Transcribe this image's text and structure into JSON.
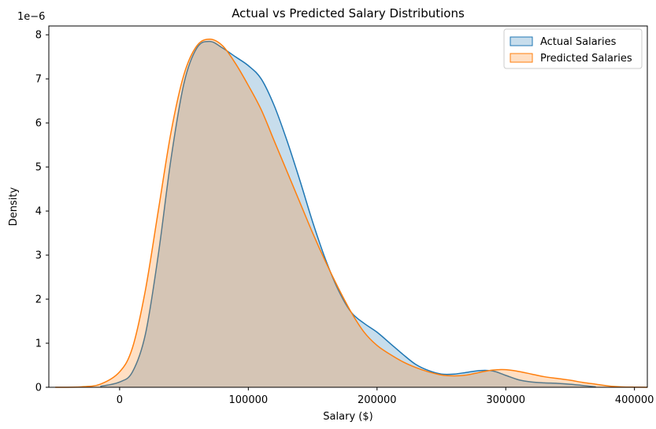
{
  "chart_data": {
    "type": "area",
    "title": "Actual vs Predicted Salary Distributions",
    "xlabel": "Salary ($)",
    "ylabel": "Density",
    "y_offset_label": "1e−6",
    "xlim": [
      -55000,
      410000
    ],
    "ylim": [
      0,
      8.2
    ],
    "x_ticks": [
      0,
      100000,
      200000,
      300000,
      400000
    ],
    "x_tick_labels": [
      "0",
      "100000",
      "200000",
      "300000",
      "400000"
    ],
    "y_ticks": [
      0,
      1,
      2,
      3,
      4,
      5,
      6,
      7,
      8
    ],
    "y_tick_labels": [
      "0",
      "1",
      "2",
      "3",
      "4",
      "5",
      "6",
      "7",
      "8"
    ],
    "grid": false,
    "legend_position": "top-right",
    "series": [
      {
        "name": "Actual Salaries",
        "color": "#1f77b4",
        "x": [
          -15000,
          0,
          10000,
          20000,
          30000,
          40000,
          50000,
          60000,
          70000,
          80000,
          90000,
          100000,
          110000,
          120000,
          130000,
          140000,
          150000,
          160000,
          170000,
          180000,
          190000,
          200000,
          210000,
          220000,
          230000,
          240000,
          250000,
          260000,
          270000,
          280000,
          290000,
          300000,
          310000,
          320000,
          330000,
          340000,
          350000,
          360000,
          370000
        ],
        "y": [
          0.02,
          0.12,
          0.35,
          1.2,
          3.0,
          5.2,
          6.9,
          7.7,
          7.85,
          7.7,
          7.5,
          7.3,
          7.0,
          6.4,
          5.6,
          4.7,
          3.75,
          2.9,
          2.2,
          1.7,
          1.45,
          1.25,
          1.0,
          0.75,
          0.52,
          0.38,
          0.3,
          0.3,
          0.34,
          0.38,
          0.37,
          0.27,
          0.17,
          0.12,
          0.1,
          0.09,
          0.07,
          0.04,
          0.01
        ]
      },
      {
        "name": "Predicted Salaries",
        "color": "#ff7f0e",
        "x": [
          -50000,
          -30000,
          -15000,
          0,
          10000,
          20000,
          30000,
          40000,
          50000,
          60000,
          70000,
          80000,
          90000,
          100000,
          110000,
          120000,
          130000,
          140000,
          150000,
          160000,
          170000,
          180000,
          190000,
          200000,
          210000,
          220000,
          230000,
          240000,
          250000,
          260000,
          270000,
          280000,
          290000,
          300000,
          310000,
          320000,
          330000,
          340000,
          350000,
          360000,
          370000,
          380000,
          390000,
          400000,
          410000
        ],
        "y": [
          0.0,
          0.01,
          0.07,
          0.35,
          0.9,
          2.2,
          4.0,
          5.8,
          7.1,
          7.75,
          7.9,
          7.75,
          7.35,
          6.85,
          6.3,
          5.6,
          4.9,
          4.2,
          3.5,
          2.85,
          2.25,
          1.7,
          1.25,
          0.95,
          0.75,
          0.58,
          0.45,
          0.35,
          0.28,
          0.26,
          0.28,
          0.34,
          0.39,
          0.4,
          0.36,
          0.3,
          0.24,
          0.2,
          0.16,
          0.11,
          0.07,
          0.03,
          0.01,
          0.003,
          0.0
        ]
      }
    ]
  }
}
